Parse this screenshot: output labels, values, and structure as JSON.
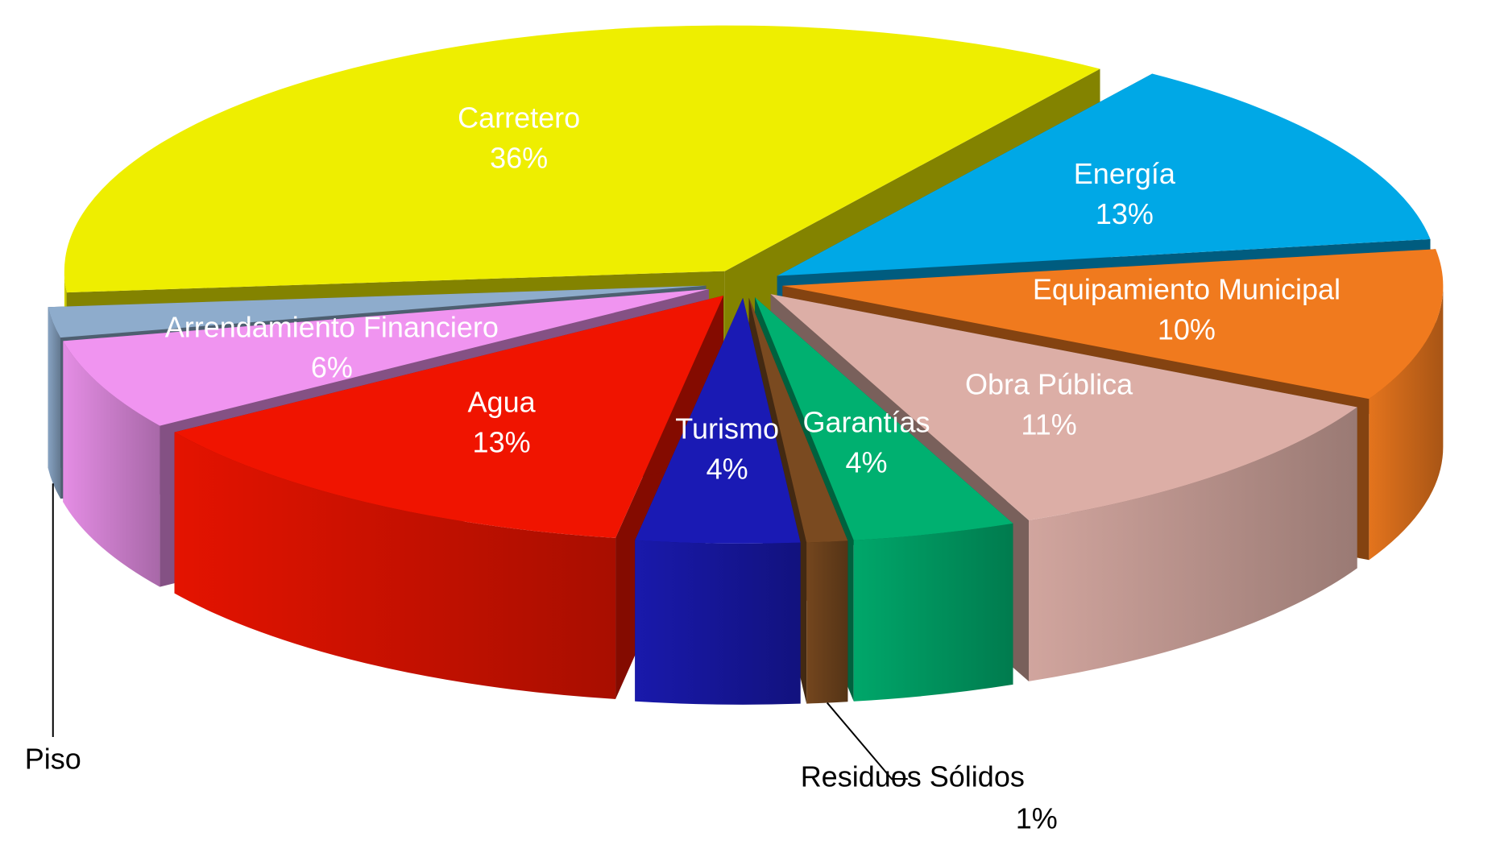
{
  "chart_data": {
    "type": "pie",
    "categories": [
      "Carretero",
      "Energía",
      "Equipamiento Municipal",
      "Obra Pública",
      "Garantías",
      "Residuos Sólidos",
      "Turismo",
      "Agua",
      "Arrendamiento Financiero",
      "Piso"
    ],
    "values": [
      36,
      13,
      10,
      11,
      4,
      1,
      4,
      13,
      6,
      2
    ],
    "value_labels": [
      "36%",
      "13%",
      "10%",
      "11%",
      "4%",
      "1%",
      "4%",
      "13%",
      "6%",
      null
    ],
    "colors": [
      "#eeee00",
      "#00a8e6",
      "#f07a1e",
      "#dcaea6",
      "#00b070",
      "#7a4a20",
      "#1a1ab4",
      "#f01400",
      "#f094f0",
      "#8eaccc"
    ]
  }
}
